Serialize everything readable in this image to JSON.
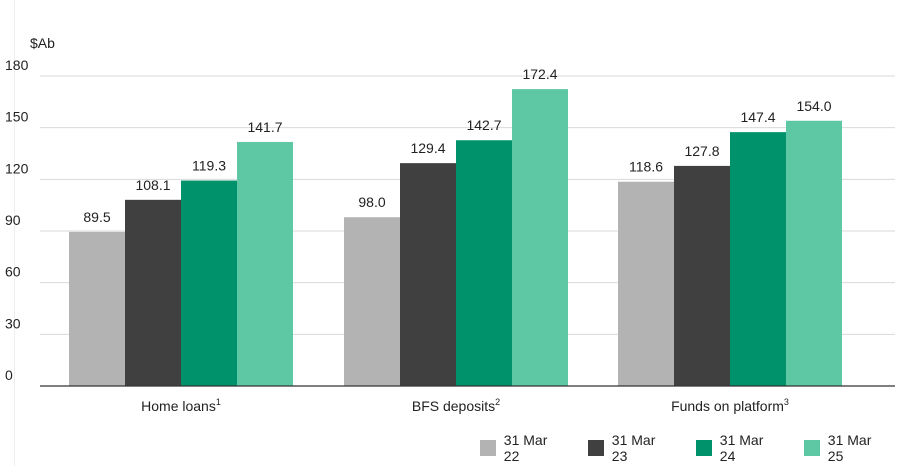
{
  "chart_data": {
    "type": "bar",
    "ylabel": "$Ab",
    "ylim": [
      0,
      180
    ],
    "yticks": [
      "0",
      "30",
      "60",
      "90",
      "120",
      "150",
      "180"
    ],
    "categories": [
      "Home loans",
      "BFS deposits",
      "Funds on platform"
    ],
    "category_superscripts": [
      "1",
      "2",
      "3"
    ],
    "series": [
      {
        "name": "31 Mar 22",
        "color": "#b3b3b3",
        "values": [
          89.5,
          98.0,
          118.6
        ],
        "labels": [
          "89.5",
          "98.0",
          "118.6"
        ]
      },
      {
        "name": "31 Mar 23",
        "color": "#404040",
        "values": [
          108.1,
          129.4,
          127.8
        ],
        "labels": [
          "108.1",
          "129.4",
          "127.8"
        ]
      },
      {
        "name": "31 Mar 24",
        "color": "#00936b",
        "values": [
          119.3,
          142.7,
          147.4
        ],
        "labels": [
          "119.3",
          "142.7",
          "147.4"
        ]
      },
      {
        "name": "31 Mar 25",
        "color": "#5ec8a4",
        "values": [
          141.7,
          172.4,
          154.0
        ],
        "labels": [
          "141.7",
          "172.4",
          "154.0"
        ]
      }
    ],
    "grid": true,
    "legend_position": "bottom-right"
  }
}
